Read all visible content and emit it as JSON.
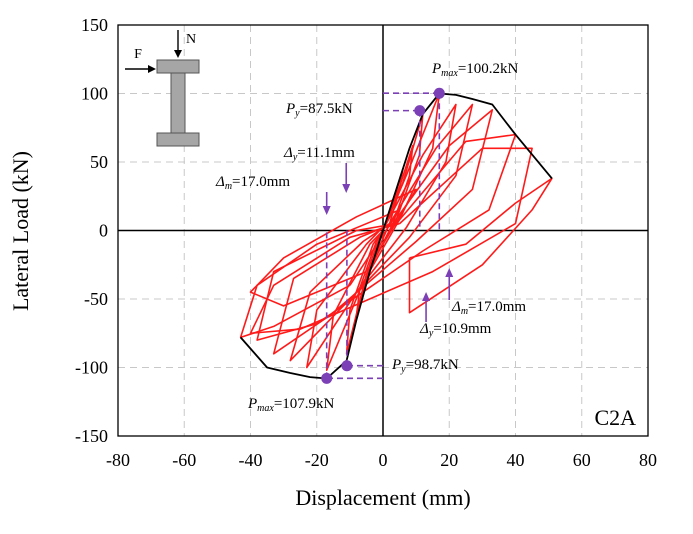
{
  "chart_data": {
    "type": "line",
    "title": "",
    "xlabel": "Displacement (mm)",
    "ylabel": "Lateral Load (kN)",
    "xlim": [
      -80,
      80
    ],
    "ylim": [
      -150,
      150
    ],
    "xticks": [
      -80,
      -60,
      -40,
      -20,
      0,
      20,
      40,
      60,
      80
    ],
    "yticks": [
      -150,
      -100,
      -50,
      0,
      50,
      100,
      150
    ],
    "grid": true,
    "panel_label": "C2A",
    "hysteresis_loops": [
      [
        [
          0,
          0
        ],
        [
          4,
          28
        ],
        [
          6,
          45
        ],
        [
          5,
          30
        ],
        [
          2,
          5
        ],
        [
          -3,
          -22
        ],
        [
          -5,
          -38
        ],
        [
          -4,
          -25
        ],
        [
          -1,
          -5
        ],
        [
          0,
          0
        ]
      ],
      [
        [
          0,
          0
        ],
        [
          5,
          32
        ],
        [
          9,
          62
        ],
        [
          8,
          40
        ],
        [
          3,
          5
        ],
        [
          -4,
          -28
        ],
        [
          -8,
          -62
        ],
        [
          -7,
          -42
        ],
        [
          -2,
          -8
        ],
        [
          0,
          0
        ]
      ],
      [
        [
          0,
          0
        ],
        [
          6,
          35
        ],
        [
          12,
          85
        ],
        [
          11,
          55
        ],
        [
          4,
          8
        ],
        [
          -5,
          -32
        ],
        [
          -11,
          -90
        ],
        [
          -10,
          -58
        ],
        [
          -3,
          -10
        ],
        [
          0,
          0
        ]
      ],
      [
        [
          0,
          0
        ],
        [
          7,
          40
        ],
        [
          17,
          100
        ],
        [
          15,
          60
        ],
        [
          5,
          8
        ],
        [
          -6,
          -38
        ],
        [
          -17,
          -102
        ],
        [
          -15,
          -62
        ],
        [
          -4,
          -10
        ],
        [
          0,
          0
        ]
      ],
      [
        [
          1,
          5
        ],
        [
          12,
          55
        ],
        [
          22,
          92
        ],
        [
          19,
          50
        ],
        [
          7,
          2
        ],
        [
          -8,
          -45
        ],
        [
          -23,
          -100
        ],
        [
          -20,
          -58
        ],
        [
          -5,
          -10
        ],
        [
          1,
          5
        ]
      ],
      [
        [
          2,
          5
        ],
        [
          16,
          60
        ],
        [
          27,
          92
        ],
        [
          22,
          40
        ],
        [
          8,
          -5
        ],
        [
          -12,
          -55
        ],
        [
          -28,
          -95
        ],
        [
          -22,
          -45
        ],
        [
          -6,
          -8
        ],
        [
          2,
          5
        ]
      ],
      [
        [
          3,
          5
        ],
        [
          20,
          62
        ],
        [
          33,
          88
        ],
        [
          27,
          30
        ],
        [
          10,
          -8
        ],
        [
          -16,
          -62
        ],
        [
          -33,
          -90
        ],
        [
          -27,
          -35
        ],
        [
          -7,
          -5
        ],
        [
          3,
          5
        ]
      ],
      [
        [
          4,
          5
        ],
        [
          25,
          65
        ],
        [
          40,
          70
        ],
        [
          32,
          15
        ],
        [
          12,
          -15
        ],
        [
          -20,
          -68
        ],
        [
          -38,
          -80
        ],
        [
          -33,
          -30
        ],
        [
          -8,
          0
        ],
        [
          4,
          5
        ]
      ],
      [
        [
          5,
          5
        ],
        [
          30,
          60
        ],
        [
          45,
          60
        ],
        [
          40,
          5
        ],
        [
          15,
          -30
        ],
        [
          -25,
          -72
        ],
        [
          -40,
          -75
        ],
        [
          -33,
          -40
        ],
        [
          -10,
          -5
        ],
        [
          5,
          5
        ]
      ],
      [
        [
          -5,
          -30
        ],
        [
          -30,
          -55
        ],
        [
          -40,
          -45
        ],
        [
          -30,
          -20
        ],
        [
          -8,
          10
        ],
        [
          10,
          30
        ],
        [
          -5,
          -30
        ]
      ],
      [
        [
          -10,
          -40
        ],
        [
          -33,
          -70
        ],
        [
          -43,
          -78
        ],
        [
          -38,
          -40
        ],
        [
          -20,
          -10
        ],
        [
          5,
          15
        ],
        [
          -10,
          -40
        ]
      ],
      [
        [
          8,
          -20
        ],
        [
          25,
          -10
        ],
        [
          40,
          20
        ],
        [
          51,
          38
        ],
        [
          45,
          15
        ],
        [
          30,
          -25
        ],
        [
          8,
          -60
        ],
        [
          8,
          -20
        ]
      ]
    ],
    "envelope": {
      "positive": [
        [
          0,
          0
        ],
        [
          4,
          30
        ],
        [
          8,
          60
        ],
        [
          12,
          85
        ],
        [
          17,
          100
        ],
        [
          22,
          99
        ],
        [
          27,
          96
        ],
        [
          33,
          92
        ],
        [
          40,
          70
        ],
        [
          51,
          38
        ]
      ],
      "negative": [
        [
          0,
          0
        ],
        [
          -4,
          -30
        ],
        [
          -8,
          -65
        ],
        [
          -11,
          -95
        ],
        [
          -17,
          -108
        ],
        [
          -22,
          -107
        ],
        [
          -28,
          -104
        ],
        [
          -35,
          -100
        ],
        [
          -43,
          -78
        ]
      ]
    },
    "key_points": [
      {
        "name": "P_max positive",
        "x": 17.0,
        "y": 100.2
      },
      {
        "name": "P_y positive",
        "x": 11.1,
        "y": 87.5
      },
      {
        "name": "P_max negative",
        "x": -17.0,
        "y": -107.9
      },
      {
        "name": "P_y negative",
        "x": -10.9,
        "y": -98.7
      }
    ],
    "annotations": {
      "pmax_pos": {
        "symbol": "P",
        "sub": "max",
        "value": "=100.2kN"
      },
      "py_pos": {
        "symbol": "P",
        "sub": "y",
        "value": "=87.5kN"
      },
      "dy_pos": {
        "symbol": "Δ",
        "sub": "y",
        "value": "=11.1mm"
      },
      "dm_pos": {
        "symbol": "Δ",
        "sub": "m",
        "value": "=17.0mm"
      },
      "dm_neg": {
        "symbol": "Δ",
        "sub": "m",
        "value": "=17.0mm"
      },
      "dy_neg": {
        "symbol": "Δ",
        "sub": "y",
        "value": "=10.9mm"
      },
      "py_neg": {
        "symbol": "P",
        "sub": "y",
        "value": "=98.7kN"
      },
      "pmax_neg": {
        "symbol": "P",
        "sub": "max",
        "value": "=107.9kN"
      }
    },
    "inset": {
      "force_label": "F",
      "axial_label": "N"
    }
  },
  "colors": {
    "loops": "#ff1a1a",
    "envelope": "#000000",
    "markers": "#7b3fb6",
    "inset_fill": "#a6a6a6"
  }
}
